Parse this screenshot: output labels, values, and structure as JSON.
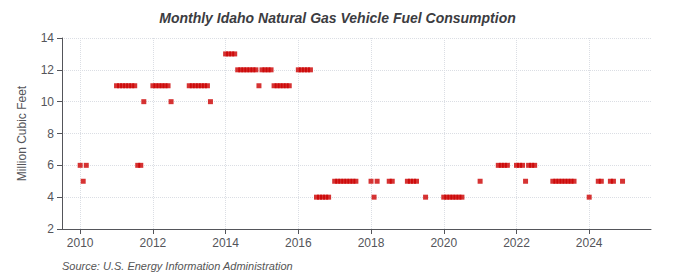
{
  "chart_data": {
    "type": "scatter",
    "title": "Monthly Idaho Natural Gas Vehicle Fuel Consumption",
    "ylabel": "Million Cubic Feet",
    "annotation": "Source: U.S. Energy Information Administration",
    "color": "#cc0000",
    "marker": "square",
    "grid": true,
    "xlim": [
      2009.5,
      2025.7
    ],
    "xticks": [
      2010,
      2012,
      2014,
      2016,
      2018,
      2020,
      2022,
      2024
    ],
    "ylim": [
      2,
      14
    ],
    "yticks": [
      2,
      4,
      6,
      8,
      10,
      12,
      14
    ],
    "x": [
      2010.0,
      2010.083,
      2010.167,
      2011.0,
      2011.083,
      2011.167,
      2011.25,
      2011.333,
      2011.417,
      2011.5,
      2011.583,
      2011.667,
      2011.75,
      2012.0,
      2012.083,
      2012.167,
      2012.25,
      2012.333,
      2012.417,
      2012.5,
      2013.0,
      2013.083,
      2013.167,
      2013.25,
      2013.333,
      2013.417,
      2013.5,
      2013.583,
      2014.0,
      2014.083,
      2014.167,
      2014.25,
      2014.333,
      2014.417,
      2014.5,
      2014.583,
      2014.667,
      2014.75,
      2014.833,
      2014.917,
      2015.0,
      2015.083,
      2015.167,
      2015.25,
      2015.333,
      2015.417,
      2015.5,
      2015.583,
      2015.667,
      2015.75,
      2016.0,
      2016.083,
      2016.167,
      2016.25,
      2016.333,
      2016.5,
      2016.583,
      2016.667,
      2016.75,
      2016.833,
      2017.0,
      2017.083,
      2017.167,
      2017.25,
      2017.333,
      2017.417,
      2017.5,
      2017.583,
      2018.0,
      2018.083,
      2018.167,
      2018.5,
      2018.583,
      2019.0,
      2019.083,
      2019.167,
      2019.25,
      2019.5,
      2020.0,
      2020.083,
      2020.167,
      2020.25,
      2020.333,
      2020.417,
      2020.5,
      2021.0,
      2021.5,
      2021.583,
      2021.667,
      2021.75,
      2022.0,
      2022.083,
      2022.167,
      2022.25,
      2022.333,
      2022.417,
      2022.5,
      2023.0,
      2023.083,
      2023.167,
      2023.25,
      2023.333,
      2023.417,
      2023.5,
      2023.583,
      2024.0,
      2024.25,
      2024.333,
      2024.583,
      2024.667,
      2024.917
    ],
    "values": [
      6,
      5,
      6,
      11,
      11,
      11,
      11,
      11,
      11,
      11,
      6,
      6,
      10,
      11,
      11,
      11,
      11,
      11,
      11,
      10,
      11,
      11,
      11,
      11,
      11,
      11,
      11,
      10,
      13,
      13,
      13,
      13,
      12,
      12,
      12,
      12,
      12,
      12,
      12,
      11,
      12,
      12,
      12,
      12,
      11,
      11,
      11,
      11,
      11,
      11,
      12,
      12,
      12,
      12,
      12,
      4,
      4,
      4,
      4,
      4,
      5,
      5,
      5,
      5,
      5,
      5,
      5,
      5,
      5,
      4,
      5,
      5,
      5,
      5,
      5,
      5,
      5,
      4,
      4,
      4,
      4,
      4,
      4,
      4,
      4,
      5,
      6,
      6,
      6,
      6,
      6,
      6,
      6,
      5,
      6,
      6,
      6,
      5,
      5,
      5,
      5,
      5,
      5,
      5,
      5,
      4,
      5,
      5,
      5,
      5,
      5
    ]
  }
}
